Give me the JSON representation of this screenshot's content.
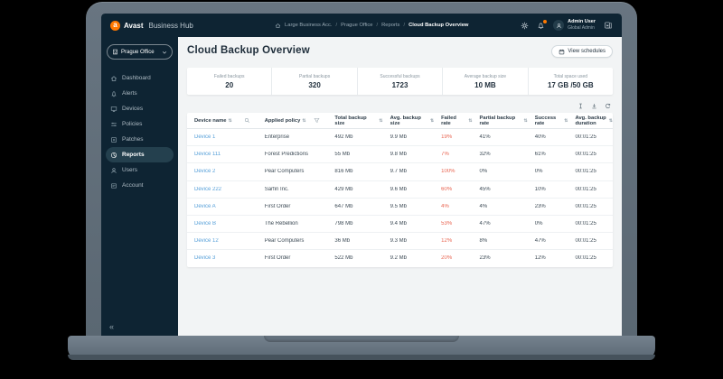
{
  "topbar": {
    "brand": {
      "bold": "Avast",
      "light": "Business Hub"
    },
    "breadcrumb": [
      "Large Business Acc.",
      "Prague Office",
      "Reports",
      "Cloud Backup Overview"
    ],
    "user": {
      "name": "Admin User",
      "role": "Global Admin"
    }
  },
  "sidebar": {
    "org_selector": "Prague Office",
    "items": [
      {
        "label": "Dashboard",
        "icon": "home-icon",
        "active": false
      },
      {
        "label": "Alerts",
        "icon": "bell-icon",
        "active": false
      },
      {
        "label": "Devices",
        "icon": "monitor-icon",
        "active": false
      },
      {
        "label": "Policies",
        "icon": "sliders-icon",
        "active": false
      },
      {
        "label": "Patches",
        "icon": "patch-icon",
        "active": false
      },
      {
        "label": "Reports",
        "icon": "pie-chart-icon",
        "active": true
      },
      {
        "label": "Users",
        "icon": "user-icon",
        "active": false
      },
      {
        "label": "Account",
        "icon": "card-icon",
        "active": false
      }
    ],
    "collapse_glyph": "«"
  },
  "page": {
    "title": "Cloud Backup Overview",
    "view_schedules_label": "View schedules"
  },
  "stats": [
    {
      "label": "Failed backups",
      "value": "20"
    },
    {
      "label": "Partial backups",
      "value": "320"
    },
    {
      "label": "Successful backups",
      "value": "1723"
    },
    {
      "label": "Average backup size",
      "value": "10 MB"
    },
    {
      "label": "Total space used",
      "value": "17 GB /50 GB"
    }
  ],
  "table": {
    "columns": [
      "Device name",
      "Applied policy",
      "Total backup size",
      "Avg. backup size",
      "Failed rate",
      "Partial backup rate",
      "Success rate",
      "Avg. backup duration"
    ],
    "rows": [
      {
        "device": "Device 1",
        "policy": "Enterprise",
        "total_size": "492 Mb",
        "avg_size": "9.9 Mb",
        "failed_rate": "19%",
        "partial_rate": "41%",
        "success_rate": "40%",
        "avg_duration": "00:01:25"
      },
      {
        "device": "Device 111",
        "policy": "Forest Predictions",
        "total_size": "55 Mb",
        "avg_size": "9.8 Mb",
        "failed_rate": "7%",
        "partial_rate": "32%",
        "success_rate": "61%",
        "avg_duration": "00:01:25"
      },
      {
        "device": "Device 2",
        "policy": "Pear Computers",
        "total_size": "816 Mb",
        "avg_size": "9.7 Mb",
        "failed_rate": "100%",
        "partial_rate": "0%",
        "success_rate": "0%",
        "avg_duration": "00:01:25"
      },
      {
        "device": "Device 222",
        "policy": "Sarfin Inc.",
        "total_size": "429 Mb",
        "avg_size": "9.6 Mb",
        "failed_rate": "60%",
        "partial_rate": "45%",
        "success_rate": "10%",
        "avg_duration": "00:01:25"
      },
      {
        "device": "Device A",
        "policy": "First Order",
        "total_size": "647 Mb",
        "avg_size": "9.5 Mb",
        "failed_rate": "4%",
        "partial_rate": "4%",
        "success_rate": "23%",
        "avg_duration": "00:01:25"
      },
      {
        "device": "Device B",
        "policy": "The Rebellion",
        "total_size": "798 Mb",
        "avg_size": "9.4 Mb",
        "failed_rate": "53%",
        "partial_rate": "47%",
        "success_rate": "0%",
        "avg_duration": "00:01:25"
      },
      {
        "device": "Device 12",
        "policy": "Pear Computers",
        "total_size": "36 Mb",
        "avg_size": "9.3 Mb",
        "failed_rate": "12%",
        "partial_rate": "8%",
        "success_rate": "47%",
        "avg_duration": "00:01:25"
      },
      {
        "device": "Device 3",
        "policy": "First Order",
        "total_size": "522 Mb",
        "avg_size": "9.2 Mb",
        "failed_rate": "20%",
        "partial_rate": "23%",
        "success_rate": "12%",
        "avg_duration": "00:01:25"
      }
    ]
  },
  "colors": {
    "accent_orange": "#ff7800",
    "dark_navy": "#0e2433",
    "link_blue": "#57a0d9",
    "failed_red": "#e8634f",
    "content_bg": "#f2f4f5"
  }
}
